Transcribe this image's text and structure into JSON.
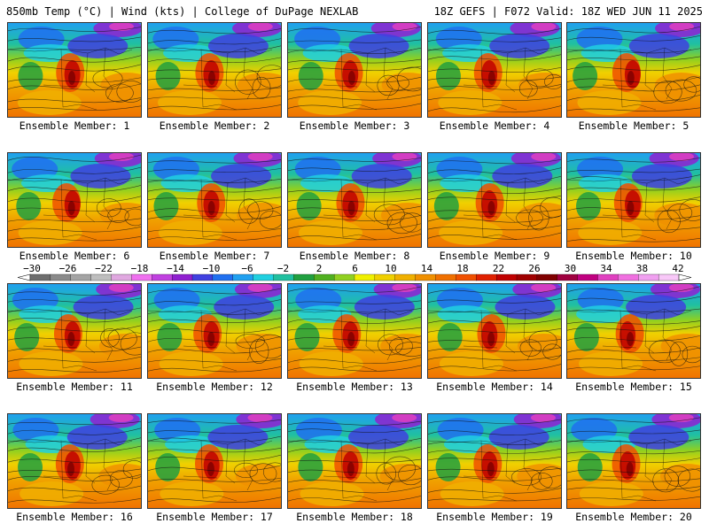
{
  "header": {
    "title_left": "850mb Temp (°C) | Wind (kts) | College of DuPage NEXLAB",
    "title_right": "18Z GEFS | F072 Valid: 18Z WED JUN 11 2025"
  },
  "panels": [
    {
      "label": "Ensemble Member: 1",
      "seed": 1
    },
    {
      "label": "Ensemble Member: 2",
      "seed": 2
    },
    {
      "label": "Ensemble Member: 3",
      "seed": 3
    },
    {
      "label": "Ensemble Member: 4",
      "seed": 4
    },
    {
      "label": "Ensemble Member: 5",
      "seed": 5
    },
    {
      "label": "Ensemble Member: 6",
      "seed": 6
    },
    {
      "label": "Ensemble Member: 7",
      "seed": 7
    },
    {
      "label": "Ensemble Member: 8",
      "seed": 8
    },
    {
      "label": "Ensemble Member: 9",
      "seed": 9
    },
    {
      "label": "Ensemble Member: 10",
      "seed": 10
    },
    {
      "label": "Ensemble Member: 11",
      "seed": 11
    },
    {
      "label": "Ensemble Member: 12",
      "seed": 12
    },
    {
      "label": "Ensemble Member: 13",
      "seed": 13
    },
    {
      "label": "Ensemble Member: 14",
      "seed": 14
    },
    {
      "label": "Ensemble Member: 15",
      "seed": 15
    },
    {
      "label": "Ensemble Member: 16",
      "seed": 16
    },
    {
      "label": "Ensemble Member: 17",
      "seed": 17
    },
    {
      "label": "Ensemble Member: 18",
      "seed": 18
    },
    {
      "label": "Ensemble Member: 19",
      "seed": 19
    },
    {
      "label": "Ensemble Member: 20",
      "seed": 20
    }
  ],
  "colorbar": {
    "labels": [
      "−30",
      "−26",
      "−22",
      "−18",
      "−14",
      "−10",
      "−6",
      "−2",
      "2",
      "6",
      "10",
      "14",
      "18",
      "22",
      "26",
      "30",
      "34",
      "38",
      "42"
    ],
    "colors": [
      "#6e6e6e",
      "#8a8a8a",
      "#a4a4a4",
      "#bebebe",
      "#e0a8e0",
      "#f070f0",
      "#c040e0",
      "#9020d0",
      "#4040e0",
      "#2070f0",
      "#20a0f0",
      "#20d0e0",
      "#20c0a0",
      "#20a040",
      "#50b020",
      "#90d020",
      "#f0f000",
      "#f0d000",
      "#f0b000",
      "#f09000",
      "#f07000",
      "#f05000",
      "#e02000",
      "#c00000",
      "#a00000",
      "#800000",
      "#a00040",
      "#c00080",
      "#e040c0",
      "#f070e0",
      "#f0a0f0",
      "#f8c8f8"
    ]
  }
}
